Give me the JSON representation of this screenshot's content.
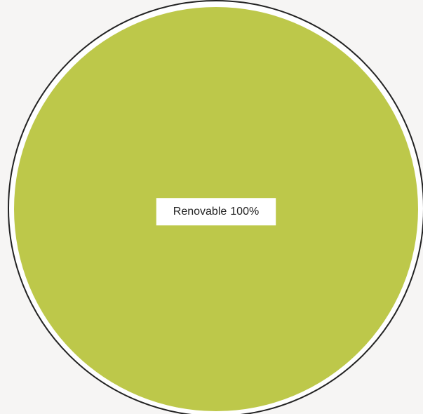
{
  "chart_data": {
    "type": "pie",
    "categories": [
      "Renovable"
    ],
    "values": [
      100
    ],
    "value_labels": [
      "100%"
    ],
    "colors": [
      "#bdc84a"
    ]
  }
}
